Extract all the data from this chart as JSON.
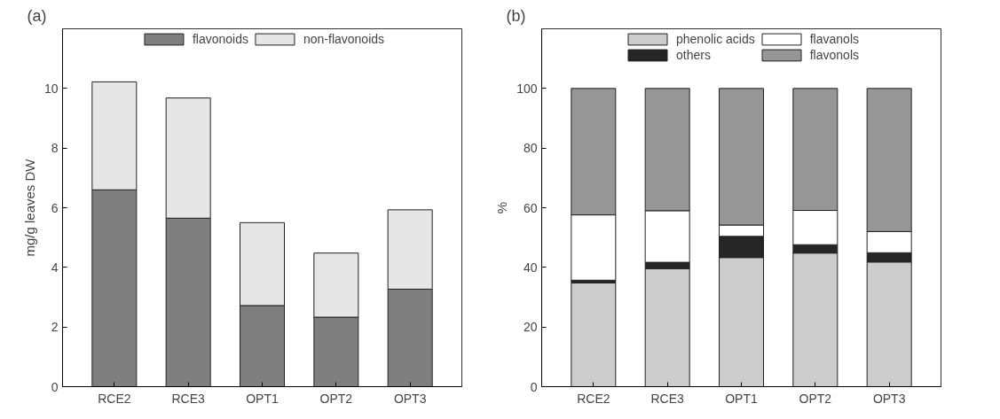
{
  "chart_data": [
    {
      "type": "bar",
      "title": "(a)",
      "ylabel": "mg/g leaves DW",
      "stacked": true,
      "legend": "top",
      "grid": false,
      "categories": [
        "RCE2",
        "RCE3",
        "OPT1",
        "OPT2",
        "OPT3"
      ],
      "ylim": [
        0,
        12
      ],
      "yticks": [
        0,
        2,
        4,
        6,
        8,
        10
      ],
      "series": [
        {
          "name": "flavonoids",
          "color": "#7f7f7f",
          "values": [
            6.6,
            5.65,
            2.72,
            2.33,
            3.27
          ]
        },
        {
          "name": "non-flavonoids",
          "color": "#e6e6e6",
          "values": [
            3.62,
            4.03,
            2.78,
            2.15,
            2.66
          ]
        }
      ]
    },
    {
      "type": "bar",
      "title": "(b)",
      "ylabel": "%",
      "stacked": true,
      "legend": "top",
      "grid": false,
      "categories": [
        "RCE2",
        "RCE3",
        "OPT1",
        "OPT2",
        "OPT3"
      ],
      "ylim": [
        0,
        120
      ],
      "yticks": [
        0,
        20,
        40,
        60,
        80,
        100
      ],
      "series": [
        {
          "name": "phenolic acids",
          "color": "#cccccc",
          "values": [
            34.8,
            39.6,
            43.3,
            44.8,
            41.8
          ]
        },
        {
          "name": "others",
          "color": "#262626",
          "values": [
            0.9,
            2.1,
            7.1,
            2.8,
            3.1
          ]
        },
        {
          "name": "flavanols",
          "color": "#ffffff",
          "values": [
            21.9,
            17.3,
            3.8,
            11.5,
            7.1
          ]
        },
        {
          "name": "flavonols",
          "color": "#969696",
          "values": [
            42.4,
            41.0,
            45.8,
            40.9,
            48.0
          ]
        }
      ]
    }
  ]
}
